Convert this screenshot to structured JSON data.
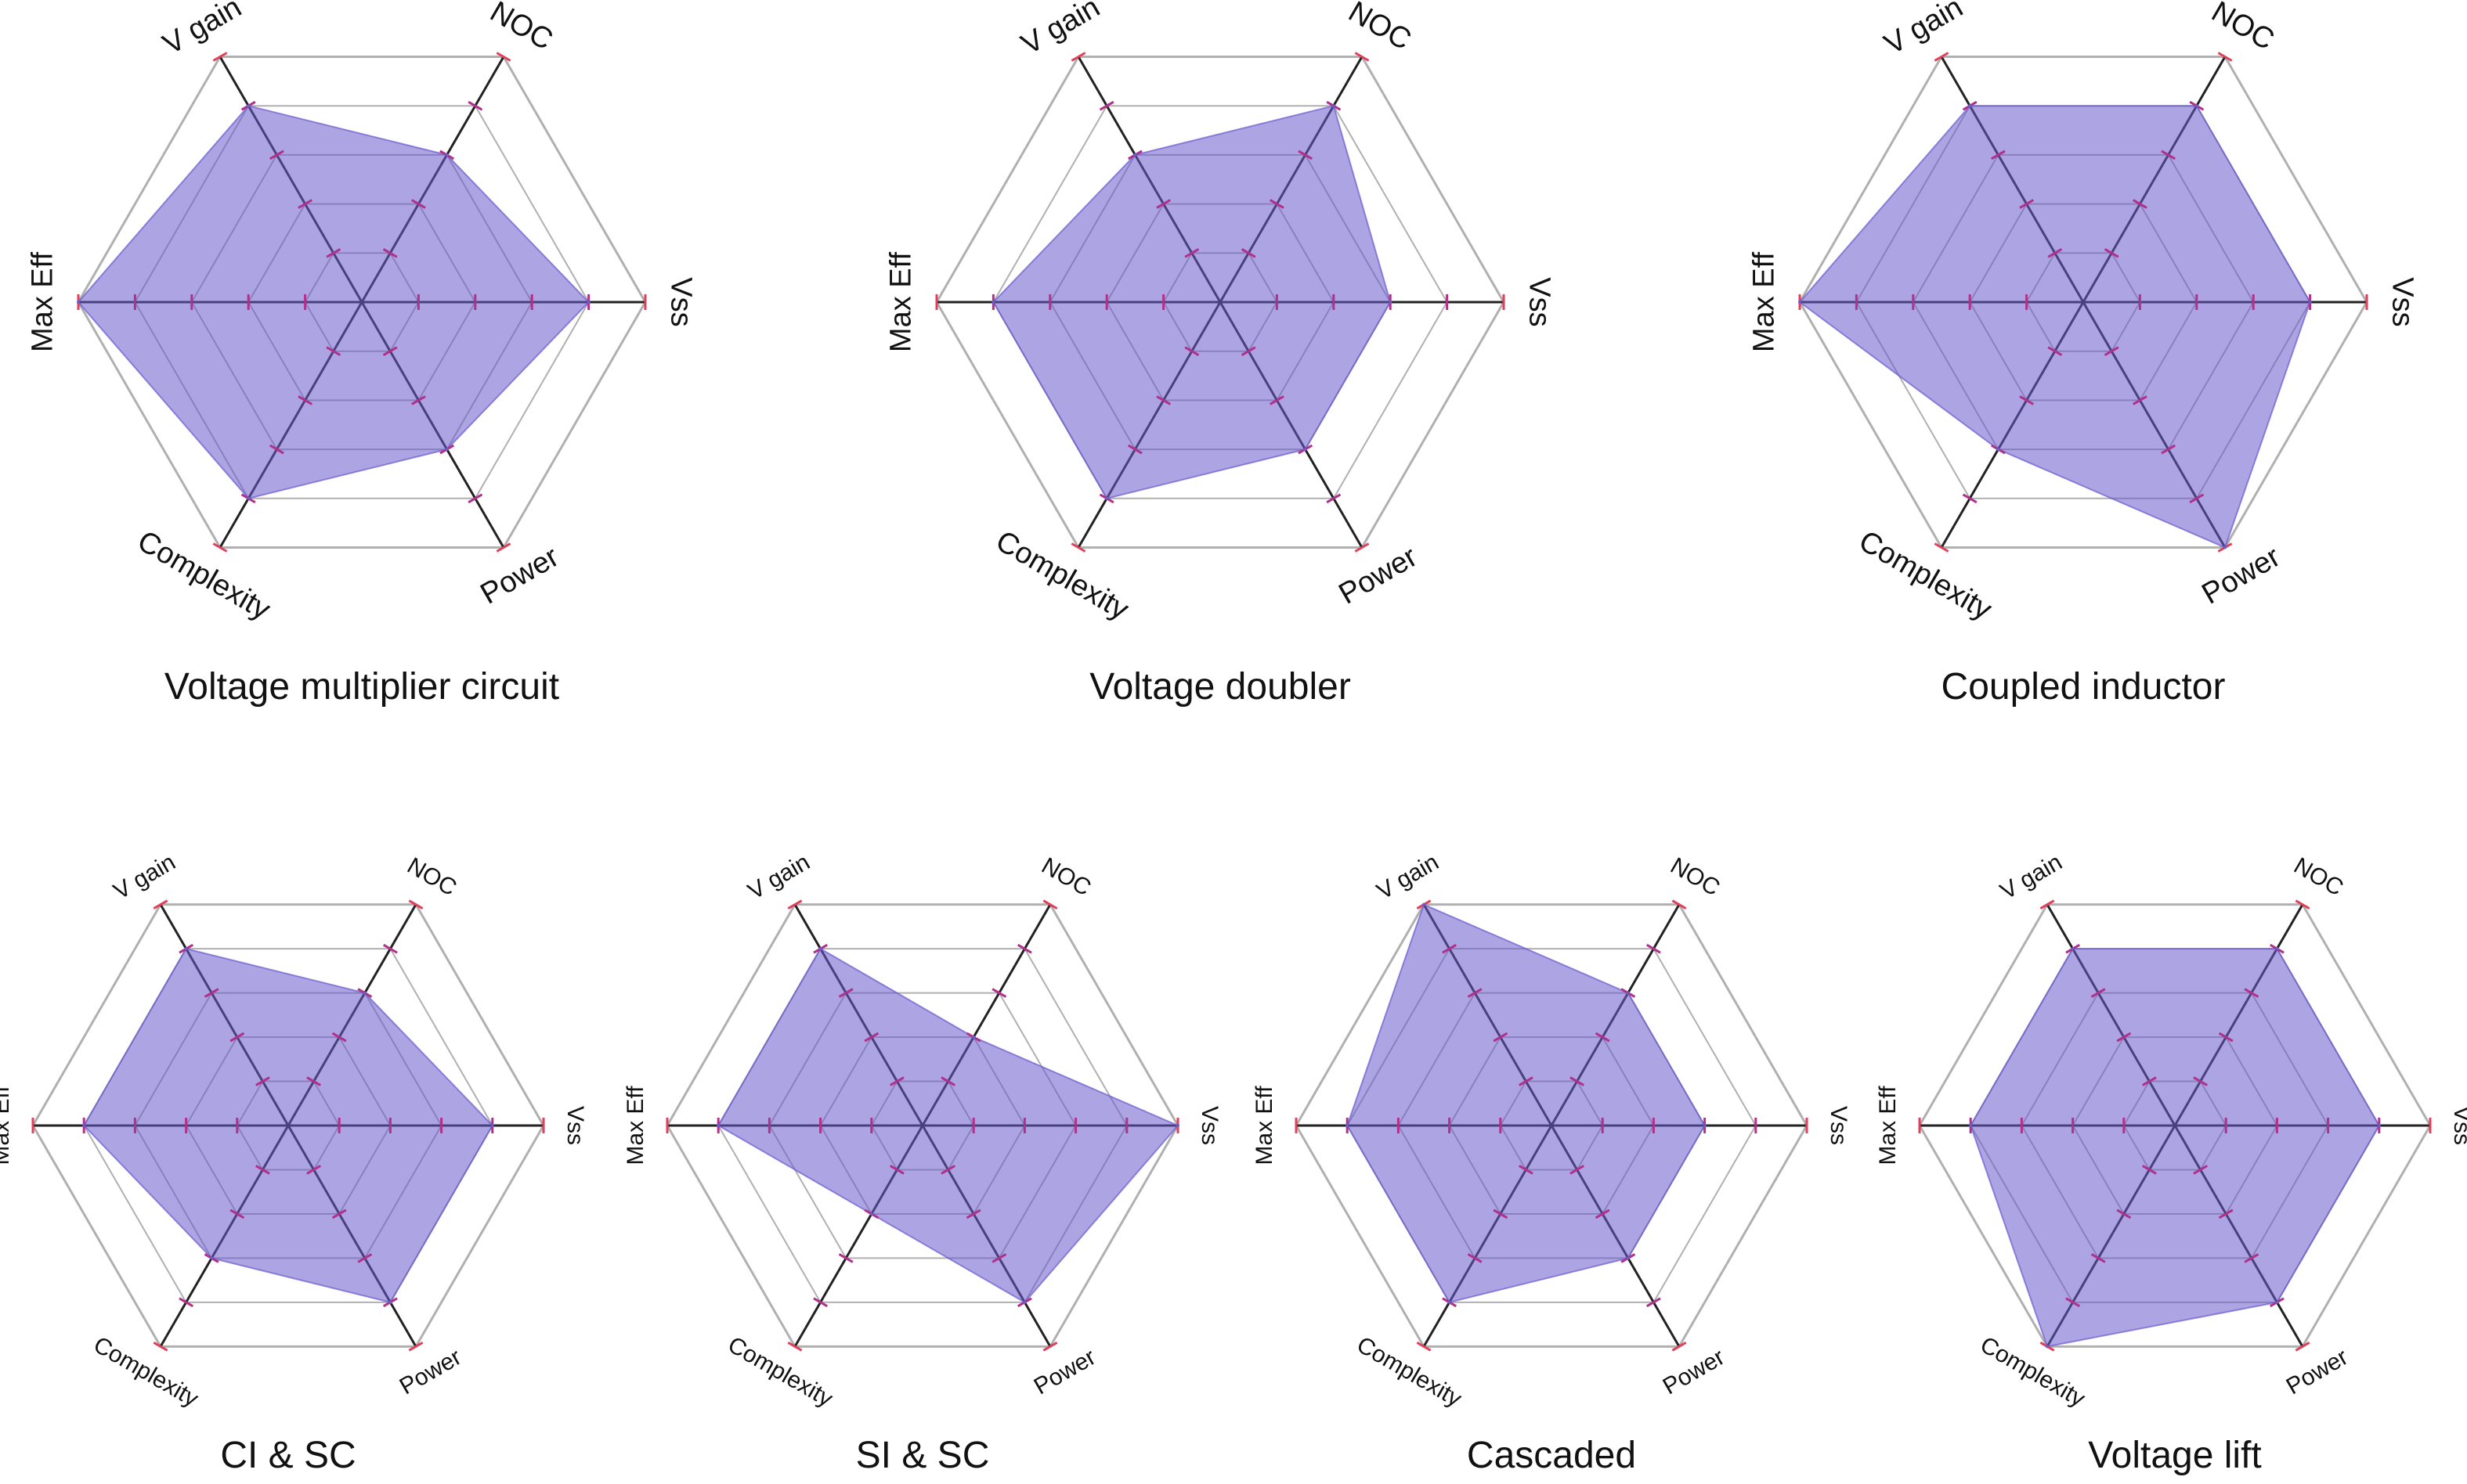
{
  "chart_data": {
    "type": "radar",
    "axes": [
      "Vss",
      "NOC",
      "V gain",
      "Max Eff",
      "Complexity",
      "Power"
    ],
    "rlim": [
      0,
      5
    ],
    "levels": [
      1,
      2,
      3,
      4,
      5
    ],
    "colors": {
      "fill": "#6a5acd",
      "axis": "#222222",
      "grid": "#b0b0b0",
      "tick": "#e0405a"
    },
    "charts": [
      {
        "title": "Voltage multiplier circuit",
        "values": {
          "Vss": 4,
          "NOC": 3,
          "V gain": 4,
          "Max Eff": 5,
          "Complexity": 4,
          "Power": 3
        }
      },
      {
        "title": "Voltage doubler",
        "values": {
          "Vss": 3,
          "NOC": 4,
          "V gain": 3,
          "Max Eff": 4,
          "Complexity": 4,
          "Power": 3
        }
      },
      {
        "title": "Coupled inductor",
        "values": {
          "Vss": 4,
          "NOC": 4,
          "V gain": 4,
          "Max Eff": 5,
          "Complexity": 3,
          "Power": 5
        }
      },
      {
        "title": "CI & SC",
        "values": {
          "Vss": 4,
          "NOC": 3,
          "V gain": 4,
          "Max Eff": 4,
          "Complexity": 3,
          "Power": 4
        }
      },
      {
        "title": "SI & SC",
        "values": {
          "Vss": 5,
          "NOC": 2,
          "V gain": 4,
          "Max Eff": 4,
          "Complexity": 2,
          "Power": 4
        }
      },
      {
        "title": "Cascaded",
        "values": {
          "Vss": 3,
          "NOC": 3,
          "V gain": 5,
          "Max Eff": 4,
          "Complexity": 4,
          "Power": 3
        }
      },
      {
        "title": "Voltage lift",
        "values": {
          "Vss": 4,
          "NOC": 4,
          "V gain": 4,
          "Max Eff": 4,
          "Complexity": 5,
          "Power": 4
        }
      }
    ]
  }
}
